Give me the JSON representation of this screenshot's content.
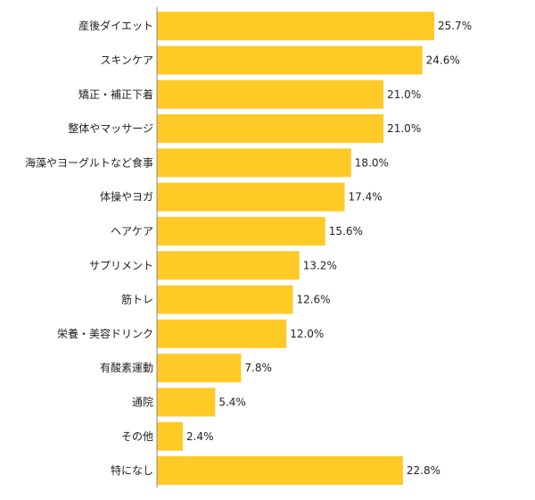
{
  "chart_data": {
    "type": "bar",
    "orientation": "horizontal",
    "title": "",
    "xlabel": "",
    "ylabel": "",
    "xlim": [
      0,
      35
    ],
    "grid": false,
    "legend": "none",
    "bar_color": "#FFC926",
    "axis_color": "#8a8a8a",
    "categories": [
      "産後ダイエット",
      "スキンケア",
      "矯正・補正下着",
      "整体やマッサージ",
      "海藻やヨーグルトなど食事",
      "体操やヨガ",
      "ヘアケア",
      "サプリメント",
      "筋トレ",
      "栄養・美容ドリンク",
      "有酸素運動",
      "通院",
      "その他",
      "特になし"
    ],
    "values": [
      25.7,
      24.6,
      21.0,
      21.0,
      18.0,
      17.4,
      15.6,
      13.2,
      12.6,
      12.0,
      7.8,
      5.4,
      2.4,
      22.8
    ],
    "value_labels": [
      "25.7%",
      "24.6%",
      "21.0%",
      "21.0%",
      "18.0%",
      "17.4%",
      "15.6%",
      "13.2%",
      "12.6%",
      "12.0%",
      "7.8%",
      "5.4%",
      "2.4%",
      "22.8%"
    ]
  }
}
